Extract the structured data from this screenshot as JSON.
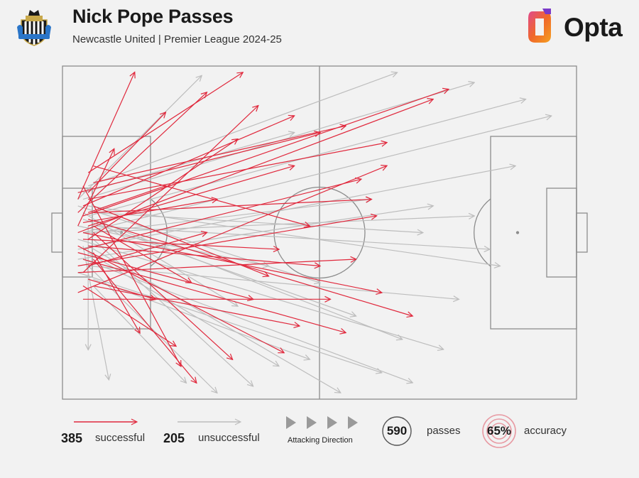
{
  "header": {
    "title": "Nick Pope Passes",
    "subtitle": "Newcastle United | Premier League 2024-25",
    "brand": "Opta"
  },
  "legend": {
    "successful_count": "385",
    "successful_label": "successful",
    "unsuccessful_count": "205",
    "unsuccessful_label": "unsuccessful",
    "direction_label": "Attacking Direction",
    "passes_count": "590",
    "passes_label": "passes",
    "accuracy_value": "65%",
    "accuracy_label": "accuracy"
  },
  "colors": {
    "successful": "#e0283c",
    "unsuccessful": "#bdbdbd",
    "pitch_lines": "#8c8c8c",
    "background": "#f2f2f2"
  },
  "chart_data": {
    "type": "pass-map",
    "title": "Nick Pope Passes",
    "subtitle": "Newcastle United | Premier League 2024-25",
    "x_range": [
      0,
      100
    ],
    "y_range": [
      0,
      100
    ],
    "attacking_direction": "left-to-right",
    "totals": {
      "passes": 590,
      "successful": 385,
      "unsuccessful": 205,
      "accuracy_pct": 65
    },
    "series": [
      {
        "name": "successful",
        "count": 385,
        "passes_sample": [
          [
            4,
            45,
            75,
            7
          ],
          [
            3,
            50,
            72,
            10
          ],
          [
            5,
            40,
            63,
            23
          ],
          [
            4,
            55,
            58,
            34
          ],
          [
            6,
            35,
            55,
            18
          ],
          [
            3,
            60,
            61,
            45
          ],
          [
            5,
            48,
            45,
            30
          ],
          [
            4,
            52,
            42,
            55
          ],
          [
            6,
            42,
            40,
            63
          ],
          [
            3,
            56,
            37,
            70
          ],
          [
            5,
            46,
            68,
            75
          ],
          [
            4,
            58,
            55,
            80
          ],
          [
            6,
            50,
            33,
            88
          ],
          [
            3,
            44,
            28,
            8
          ],
          [
            5,
            38,
            20,
            14
          ],
          [
            4,
            62,
            38,
            12
          ],
          [
            6,
            30,
            48,
            48
          ],
          [
            3,
            68,
            63,
            30
          ],
          [
            5,
            54,
            50,
            60
          ],
          [
            4,
            47,
            30,
            40
          ],
          [
            6,
            58,
            26,
            95
          ],
          [
            3,
            40,
            14,
            2
          ],
          [
            5,
            64,
            18,
            70
          ],
          [
            4,
            36,
            23,
            90
          ],
          [
            6,
            66,
            46,
            78
          ],
          [
            3,
            48,
            10,
            25
          ],
          [
            5,
            52,
            34,
            22
          ],
          [
            4,
            70,
            52,
            70
          ],
          [
            6,
            44,
            60,
            40
          ],
          [
            3,
            54,
            43,
            86
          ],
          [
            5,
            32,
            35,
            2
          ],
          [
            4,
            66,
            22,
            84
          ],
          [
            6,
            56,
            15,
            80
          ],
          [
            3,
            38,
            50,
            20
          ],
          [
            5,
            60,
            28,
            50
          ],
          [
            4,
            42,
            45,
            15
          ],
          [
            6,
            48,
            25,
            65
          ],
          [
            3,
            62,
            57,
            58
          ],
          [
            5,
            44,
            20,
            36
          ],
          [
            4,
            50,
            62,
            68
          ]
        ]
      },
      {
        "name": "unsuccessful",
        "count": 205,
        "passes_sample": [
          [
            4,
            50,
            95,
            15
          ],
          [
            5,
            45,
            90,
            10
          ],
          [
            3,
            55,
            88,
            30
          ],
          [
            6,
            48,
            83,
            55
          ],
          [
            4,
            40,
            80,
            5
          ],
          [
            5,
            60,
            77,
            70
          ],
          [
            3,
            52,
            74,
            85
          ],
          [
            6,
            44,
            70,
            50
          ],
          [
            4,
            58,
            68,
            95
          ],
          [
            5,
            36,
            65,
            2
          ],
          [
            3,
            62,
            62,
            92
          ],
          [
            6,
            50,
            60,
            40
          ],
          [
            4,
            46,
            57,
            75
          ],
          [
            5,
            54,
            54,
            98
          ],
          [
            3,
            42,
            50,
            65
          ],
          [
            6,
            64,
            48,
            88
          ],
          [
            4,
            38,
            45,
            20
          ],
          [
            5,
            56,
            42,
            90
          ],
          [
            3,
            48,
            40,
            60
          ],
          [
            6,
            52,
            37,
            96
          ],
          [
            4,
            44,
            34,
            72
          ],
          [
            5,
            60,
            30,
            98
          ],
          [
            3,
            40,
            27,
            3
          ],
          [
            6,
            66,
            24,
            95
          ],
          [
            4,
            50,
            80,
            45
          ],
          [
            5,
            42,
            85,
            60
          ],
          [
            3,
            58,
            72,
            42
          ],
          [
            6,
            46,
            66,
            82
          ],
          [
            4,
            54,
            9,
            94
          ],
          [
            5,
            48,
            5,
            85
          ]
        ]
      }
    ]
  }
}
